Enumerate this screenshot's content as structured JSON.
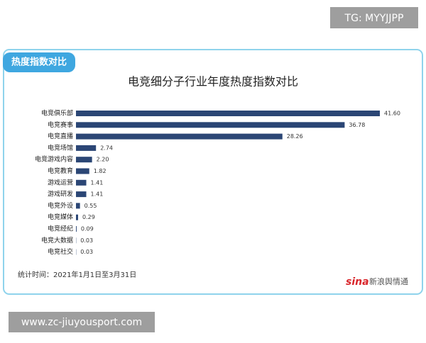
{
  "chart_data": {
    "type": "bar",
    "orientation": "horizontal",
    "tag": "热度指数对比",
    "title": "电竞细分子行业年度热度指数对比",
    "categories": [
      "电竞俱乐部",
      "电竞赛事",
      "电竞直播",
      "电竞场馆",
      "电竞游戏内容",
      "电竞教育",
      "游戏运营",
      "游戏研发",
      "电竞外设",
      "电竞媒体",
      "电竞经纪",
      "电竞大数据",
      "电竞社交"
    ],
    "values": [
      41.6,
      36.78,
      28.26,
      2.74,
      2.2,
      1.82,
      1.41,
      1.41,
      0.55,
      0.29,
      0.09,
      0.03,
      0.03
    ],
    "value_labels": [
      "41.60",
      "36.78",
      "28.26",
      "2.74",
      "2.20",
      "1.82",
      "1.41",
      "1.41",
      "0.55",
      "0.29",
      "0.09",
      "0.03",
      "0.03"
    ],
    "color": "#2b4675",
    "note": "统计时间：2021年1月1日至3月31日",
    "source_logo": "sina",
    "source": "新浪舆情通"
  },
  "watermarks": {
    "top": "TG: MYYJJPP",
    "bottom": "www.zc-jiuyousport.com"
  }
}
